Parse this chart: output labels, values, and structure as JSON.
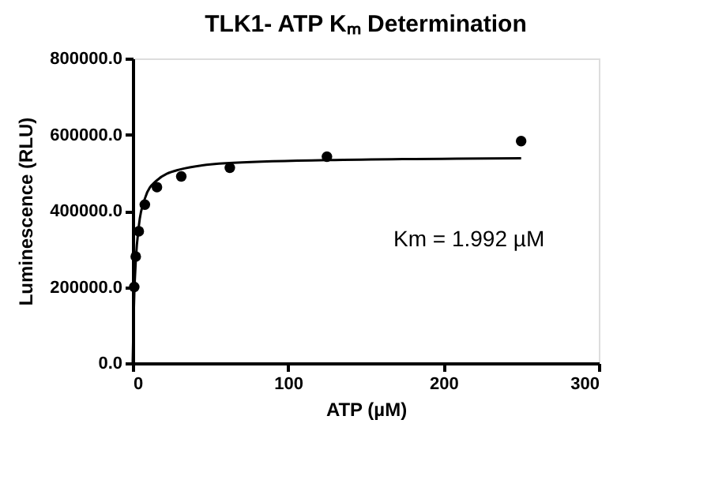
{
  "chart_data": {
    "type": "scatter",
    "title": "TLK1- ATP Kₘ Determination",
    "xlabel": "ATP (µM)",
    "ylabel": "Luminescence (RLU)",
    "xlim": [
      0,
      300
    ],
    "xticks": [
      0,
      100,
      200,
      300
    ],
    "ylim": [
      0,
      800000
    ],
    "yticks": [
      {
        "value": 0,
        "label": "0.0"
      },
      {
        "value": 200000,
        "label": "200000.0"
      },
      {
        "value": 400000,
        "label": "400000.0"
      },
      {
        "value": 600000,
        "label": "600000.0"
      },
      {
        "value": 800000,
        "label": "800000.0"
      }
    ],
    "series": [
      {
        "marker": "circle",
        "color": "#000000",
        "x": [
          0.98,
          1.95,
          3.9,
          7.8,
          15.6,
          31.25,
          62.5,
          125,
          250
        ],
        "values": [
          200000,
          280000,
          346000,
          416000,
          462000,
          490000,
          513000,
          542000,
          583000
        ]
      },
      {
        "type": "line",
        "color": "#000000",
        "x": [
          0,
          0.5,
          1,
          2,
          4,
          8,
          15,
          30,
          60,
          125,
          250
        ],
        "values": [
          0,
          108000,
          181000,
          271000,
          362000,
          434000,
          478000,
          508000,
          525000,
          533000,
          538000
        ]
      }
    ],
    "annotations": [
      "Km = 1.992 µM"
    ],
    "grid": false
  }
}
